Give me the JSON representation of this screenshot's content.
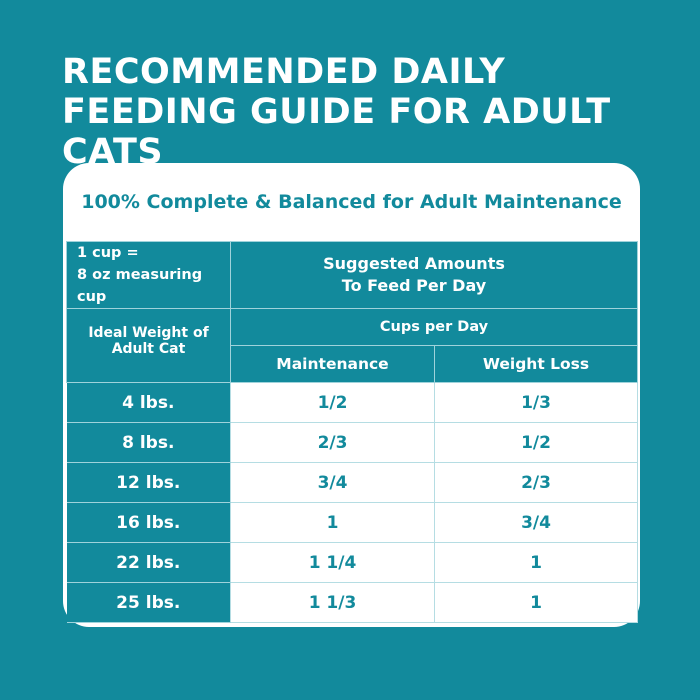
{
  "title": "RECOMMENDED DAILY FEEDING GUIDE FOR ADULT CATS",
  "subtitle": "100% Complete & Balanced for Adult Maintenance",
  "table": {
    "cup_note_line1": "1 cup =",
    "cup_note_line2": "8 oz measuring cup",
    "suggested_line1": "Suggested Amounts",
    "suggested_line2": "To Feed Per Day",
    "weight_header": "Ideal Weight of Adult Cat",
    "cups_header": "Cups per Day",
    "col_maintenance": "Maintenance",
    "col_weight_loss": "Weight Loss",
    "rows": [
      {
        "weight": "4 lbs.",
        "maintenance": "1/2",
        "weight_loss": "1/3"
      },
      {
        "weight": "8 lbs.",
        "maintenance": "2/3",
        "weight_loss": "1/2"
      },
      {
        "weight": "12 lbs.",
        "maintenance": "3/4",
        "weight_loss": "2/3"
      },
      {
        "weight": "16 lbs.",
        "maintenance": "1",
        "weight_loss": "3/4"
      },
      {
        "weight": "22 lbs.",
        "maintenance": "1 1/4",
        "weight_loss": "1"
      },
      {
        "weight": "25 lbs.",
        "maintenance": "1 1/3",
        "weight_loss": "1"
      }
    ]
  },
  "colors": {
    "teal": "#128a9c",
    "white": "#ffffff"
  }
}
